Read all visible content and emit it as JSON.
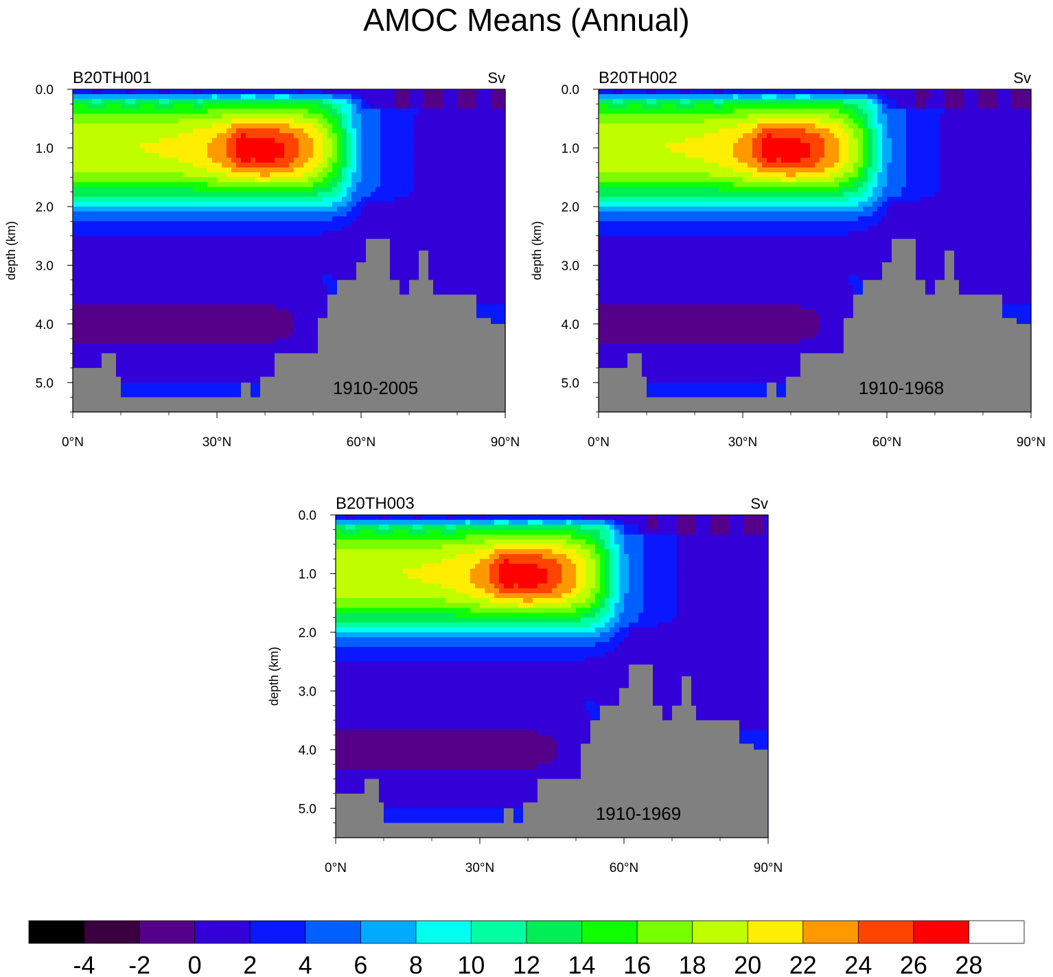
{
  "title": "AMOC Means (Annual)",
  "colors": {
    "topography": "#808080",
    "palette": [
      "#000000",
      "#3a0040",
      "#55008a",
      "#3300d8",
      "#0a18ff",
      "#0060ff",
      "#00aaff",
      "#00ffee",
      "#00ffa0",
      "#00ee55",
      "#10ff00",
      "#78ff00",
      "#c0ff00",
      "#ffee00",
      "#ff9900",
      "#ff4400",
      "#ff0000",
      "#ffffff"
    ]
  },
  "chart_data": [
    {
      "type": "contour",
      "title": "B20TH001",
      "units": "Sv",
      "ylabel": "depth (km)",
      "xlabel": "",
      "period": "1910-2005",
      "x_ticks": [
        "0°N",
        "30°N",
        "60°N",
        "90°N"
      ],
      "y_ticks": [
        "0.0",
        "1.0",
        "2.0",
        "3.0",
        "4.0",
        "5.0"
      ],
      "xlim": [
        0,
        90
      ],
      "ylim": [
        0,
        5.5
      ],
      "maximum_sv": 27,
      "max_location": {
        "lat": 35,
        "depth_km": 1.0
      }
    },
    {
      "type": "contour",
      "title": "B20TH002",
      "units": "Sv",
      "ylabel": "depth (km)",
      "xlabel": "",
      "period": "1910-1968",
      "x_ticks": [
        "0°N",
        "30°N",
        "60°N",
        "90°N"
      ],
      "y_ticks": [
        "0.0",
        "1.0",
        "2.0",
        "3.0",
        "4.0",
        "5.0"
      ],
      "xlim": [
        0,
        90
      ],
      "ylim": [
        0,
        5.5
      ],
      "maximum_sv": 27,
      "max_location": {
        "lat": 35,
        "depth_km": 1.0
      }
    },
    {
      "type": "contour",
      "title": "B20TH003",
      "units": "Sv",
      "ylabel": "depth (km)",
      "xlabel": "",
      "period": "1910-1969",
      "x_ticks": [
        "0°N",
        "30°N",
        "60°N",
        "90°N"
      ],
      "y_ticks": [
        "0.0",
        "1.0",
        "2.0",
        "3.0",
        "4.0",
        "5.0"
      ],
      "xlim": [
        0,
        90
      ],
      "ylim": [
        0,
        5.5
      ],
      "maximum_sv": 27,
      "max_location": {
        "lat": 35,
        "depth_km": 1.0
      }
    }
  ],
  "colorbar": {
    "labels": [
      "-4",
      "-2",
      "0",
      "2",
      "4",
      "6",
      "8",
      "10",
      "12",
      "14",
      "16",
      "18",
      "20",
      "22",
      "24",
      "26",
      "28"
    ],
    "levels": [
      -4,
      -3,
      -2,
      -1,
      0,
      1,
      2,
      3,
      4,
      5,
      6,
      7,
      8,
      9,
      10,
      11,
      12,
      13,
      14,
      15,
      16,
      17,
      18,
      19,
      20,
      21,
      22,
      23,
      24,
      25,
      26,
      27,
      28
    ]
  }
}
